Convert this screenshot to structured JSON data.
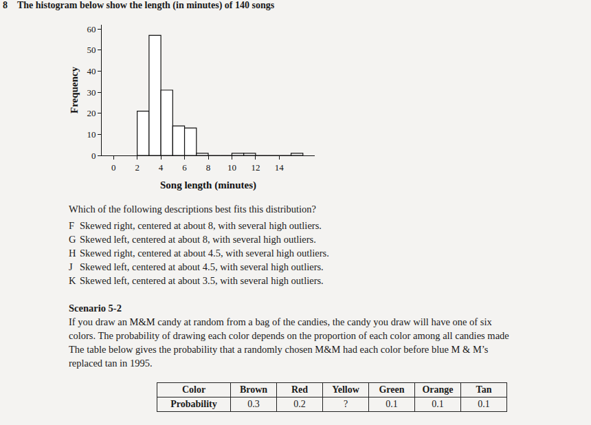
{
  "header": {
    "number": "8",
    "text": "The histogram below show the length (in minutes) of 140 songs"
  },
  "chart_data": {
    "type": "histogram",
    "bins": [
      2,
      3,
      4,
      5,
      6,
      7,
      8,
      9,
      10,
      11,
      12,
      13,
      14,
      15,
      16
    ],
    "values": [
      21,
      57,
      31,
      14,
      13,
      1,
      0,
      0,
      1,
      1,
      0,
      0,
      0,
      1
    ],
    "color": "#ffffff",
    "x_label": "Song length (minutes)",
    "y_label": "Frequency",
    "xlim": [
      -1,
      17
    ],
    "xticks": [
      0,
      2,
      4,
      6,
      8,
      10,
      12,
      14
    ],
    "ylim": [
      0,
      62
    ],
    "yticks": [
      0,
      10,
      20,
      30,
      40,
      50,
      60
    ],
    "grid": false
  },
  "question": "Which of the following descriptions best fits this distribution?",
  "options": [
    {
      "letter": "F",
      "text": "Skewed right, centered at about 8, with several high outliers."
    },
    {
      "letter": "G",
      "text": "Skewed left, centered at about 8, with several high outliers."
    },
    {
      "letter": "H",
      "text": "Skewed right, centered at about 4.5, with several high outliers."
    },
    {
      "letter": "J",
      "text": "Skewed left, centered at about 4.5, with several high outliers."
    },
    {
      "letter": "K",
      "text": "Skewed left, centered at about 3.5, with several high outliers."
    }
  ],
  "scenario": {
    "title": "Scenario 5-2",
    "lines": [
      "If you draw an M&M candy at random from a bag of the candies, the candy you draw will have one of six",
      "colors. The probability of drawing each color depends on the proportion of each color among all candies made",
      "The table below gives the probability that a randomly chosen M&M had each color before blue M & M’s",
      "replaced tan in 1995."
    ]
  },
  "table": {
    "rows": [
      [
        "Color",
        "Brown",
        "Red",
        "Yellow",
        "Green",
        "Orange",
        "Tan"
      ],
      [
        "Probability",
        "0.3",
        "0.2",
        "?",
        "0.1",
        "0.1",
        "0.1"
      ]
    ]
  }
}
